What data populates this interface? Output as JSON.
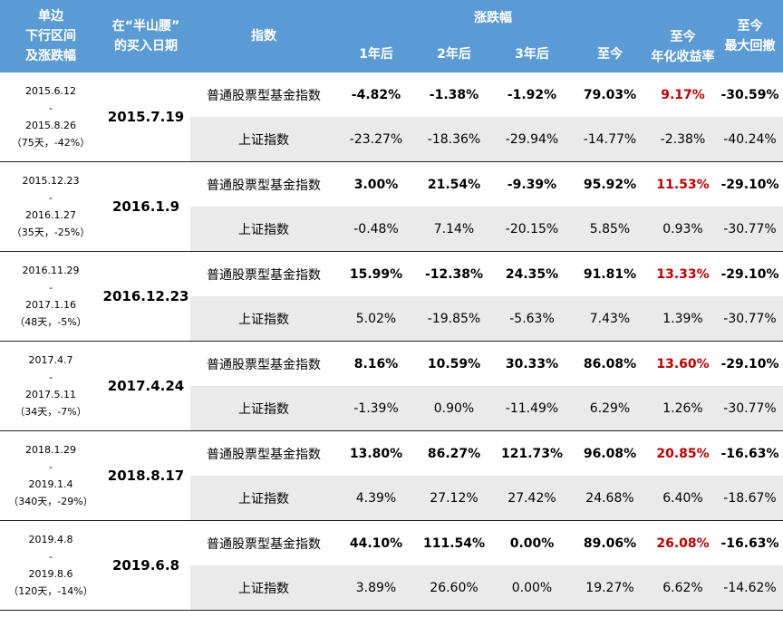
{
  "header": {
    "period_col": [
      "单边",
      "下行区间",
      "及涨跌幅"
    ],
    "buy_date_col": [
      "在“半山腰”",
      "的买入日期"
    ],
    "index_col": "指数",
    "change_group": "涨跌幅",
    "change_cols": [
      "1年后",
      "2年后",
      "3年后",
      "至今"
    ],
    "annual_col": [
      "至今",
      "年化收益率"
    ],
    "drawdown_col": [
      "至今",
      "最大回撤"
    ]
  },
  "groups": [
    {
      "period": [
        "2015.6.12",
        "-",
        "2015.8.26",
        "（75天，-42%）"
      ],
      "buy_date": "2015.7.19",
      "fund": {
        "name": "普通股票型基金指数",
        "values": [
          "-4.82%",
          "-1.38%",
          "-1.92%",
          "79.03%"
        ],
        "annual": "9.17%",
        "drawdown": "-30.59%"
      },
      "index": {
        "name": "上证指数",
        "values": [
          "-23.27%",
          "-18.36%",
          "-29.94%",
          "-14.77%"
        ],
        "annual": "-2.38%",
        "drawdown": "-40.24%"
      }
    },
    {
      "period": [
        "2015.12.23",
        "-",
        "2016.1.27",
        "（35天，-25%）"
      ],
      "buy_date": "2016.1.9",
      "fund": {
        "name": "普通股票型基金指数",
        "values": [
          "3.00%",
          "21.54%",
          "-9.39%",
          "95.92%"
        ],
        "annual": "11.53%",
        "drawdown": "-29.10%"
      },
      "index": {
        "name": "上证指数",
        "values": [
          "-0.48%",
          "7.14%",
          "-20.15%",
          "5.85%"
        ],
        "annual": "0.93%",
        "drawdown": "-30.77%"
      }
    },
    {
      "period": [
        "2016.11.29",
        "-",
        "2017.1.16",
        "（48天，-5%）"
      ],
      "buy_date": "2016.12.23",
      "fund": {
        "name": "普通股票型基金指数",
        "values": [
          "15.99%",
          "-12.38%",
          "24.35%",
          "91.81%"
        ],
        "annual": "13.33%",
        "drawdown": "-29.10%"
      },
      "index": {
        "name": "上证指数",
        "values": [
          "5.02%",
          "-19.85%",
          "-5.63%",
          "7.43%"
        ],
        "annual": "1.39%",
        "drawdown": "-30.77%"
      }
    },
    {
      "period": [
        "2017.4.7",
        "-",
        "2017.5.11",
        "（34天，-7%）"
      ],
      "buy_date": "2017.4.24",
      "fund": {
        "name": "普通股票型基金指数",
        "values": [
          "8.16%",
          "10.59%",
          "30.33%",
          "86.08%"
        ],
        "annual": "13.60%",
        "drawdown": "-29.10%"
      },
      "index": {
        "name": "上证指数",
        "values": [
          "-1.39%",
          "0.90%",
          "-11.49%",
          "6.29%"
        ],
        "annual": "1.26%",
        "drawdown": "-30.77%"
      }
    },
    {
      "period": [
        "2018.1.29",
        "-",
        "2019.1.4",
        "（340天，-29%）"
      ],
      "buy_date": "2018.8.17",
      "fund": {
        "name": "普通股票型基金指数",
        "values": [
          "13.80%",
          "86.27%",
          "121.73%",
          "96.08%"
        ],
        "annual": "20.85%",
        "drawdown": "-16.63%"
      },
      "index": {
        "name": "上证指数",
        "values": [
          "4.39%",
          "27.12%",
          "27.42%",
          "24.68%"
        ],
        "annual": "6.40%",
        "drawdown": "-18.67%"
      }
    },
    {
      "period": [
        "2019.4.8",
        "-",
        "2019.8.6",
        "（120天，-14%）"
      ],
      "buy_date": "2019.6.8",
      "fund": {
        "name": "普通股票型基金指数",
        "values": [
          "44.10%",
          "111.54%",
          "0.00%",
          "89.06%"
        ],
        "annual": "26.08%",
        "drawdown": "-16.63%"
      },
      "index": {
        "name": "上证指数",
        "values": [
          "3.89%",
          "26.60%",
          "0.00%",
          "19.27%"
        ],
        "annual": "6.62%",
        "drawdown": "-14.62%"
      }
    }
  ],
  "colors": {
    "header_bg": "#5b9bd5",
    "highlight_red": "#c00000",
    "index_row_bg": "#eaeaea"
  }
}
